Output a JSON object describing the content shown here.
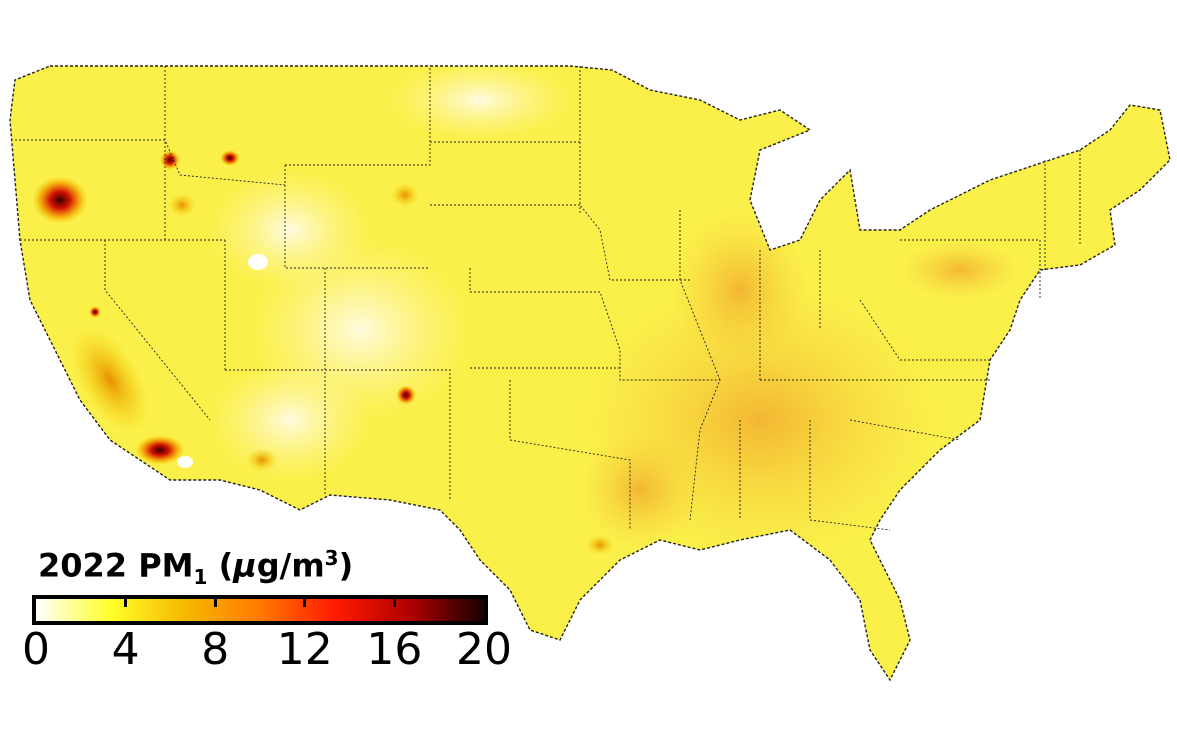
{
  "legend": {
    "year_label": "2022 PM",
    "subscript": "1",
    "unit_open": " (",
    "unit_mu": "μ",
    "unit_rest": "g/m",
    "unit_exp": "3",
    "unit_close": ")",
    "ticks": [
      "0",
      "4",
      "8",
      "12",
      "16",
      "20"
    ],
    "range": [
      0,
      20
    ],
    "colors": [
      "#ffffff",
      "#ffff2a",
      "#f5b800",
      "#ff7a00",
      "#ff1a00",
      "#b00000",
      "#1a0000"
    ]
  },
  "colors": {
    "background_fill": "#fbf04a",
    "southeast_fill": "#f4c430",
    "border": "#222222"
  }
}
